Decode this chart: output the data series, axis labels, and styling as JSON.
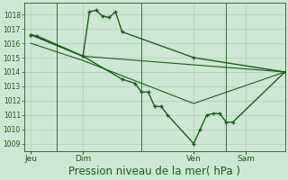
{
  "background_color": "#cde8d2",
  "grid_color": "#b0ccb8",
  "line_color": "#1a5c1a",
  "ylim": [
    1008.5,
    1018.8
  ],
  "yticks": [
    1009,
    1010,
    1011,
    1012,
    1013,
    1014,
    1015,
    1016,
    1017,
    1018
  ],
  "ytick_fontsize": 5.5,
  "xlabel": "Pression niveau de la mer( hPa )",
  "xlabel_fontsize": 8.5,
  "xtick_labels": [
    "Jeu",
    "Dim",
    "Ven",
    "Sam"
  ],
  "xtick_positions": [
    2,
    18,
    52,
    68
  ],
  "vline_positions": [
    10,
    36,
    62
  ],
  "xlim": [
    0,
    80
  ],
  "series": [
    {
      "x": [
        2,
        4,
        18,
        20,
        22,
        24,
        26,
        28,
        30,
        52,
        80
      ],
      "y": [
        1016.6,
        1016.5,
        1015.1,
        1018.2,
        1018.3,
        1017.9,
        1017.8,
        1018.2,
        1016.8,
        1015.0,
        1014.0
      ],
      "with_markers": true,
      "lw": 1.0
    },
    {
      "x": [
        2,
        18,
        30,
        34,
        36,
        38,
        40,
        42,
        44,
        52,
        54,
        56,
        58,
        60,
        62,
        64,
        80
      ],
      "y": [
        1016.6,
        1015.1,
        1013.5,
        1013.2,
        1012.6,
        1012.6,
        1011.6,
        1011.6,
        1011.0,
        1009.0,
        1010.0,
        1011.0,
        1011.1,
        1011.1,
        1010.5,
        1010.5,
        1014.0
      ],
      "with_markers": true,
      "lw": 1.0
    },
    {
      "x": [
        2,
        18,
        80
      ],
      "y": [
        1016.6,
        1015.1,
        1014.0
      ],
      "with_markers": false,
      "lw": 0.8
    },
    {
      "x": [
        2,
        18,
        52,
        80
      ],
      "y": [
        1016.0,
        1014.8,
        1011.8,
        1014.0
      ],
      "with_markers": false,
      "lw": 0.8
    }
  ],
  "figsize": [
    3.2,
    2.0
  ],
  "dpi": 100
}
